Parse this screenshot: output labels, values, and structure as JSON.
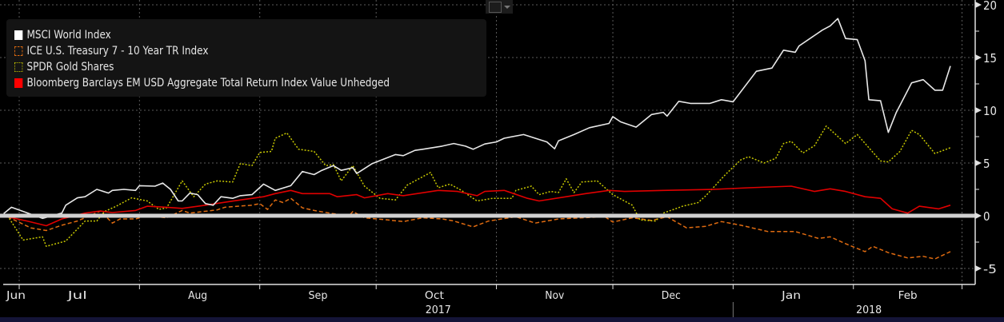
{
  "toolbar": {
    "chart_type_icon": "line-chart-icon",
    "dropdown_icon": "chevron-down-icon"
  },
  "chart_data": {
    "type": "line",
    "title": "",
    "xlabel": "",
    "ylabel": "",
    "x_unit": "days since 2017-07-01",
    "ylim": [
      -6,
      20
    ],
    "yticks": [
      20,
      15,
      10,
      5,
      0,
      -5
    ],
    "xlim": [
      -4,
      247
    ],
    "grid": true,
    "legend_position": "top-left",
    "month_ticks": [
      {
        "label": "Jun",
        "day": -15
      },
      {
        "label": "Jul",
        "day": 15
      },
      {
        "label": "Aug",
        "day": 46
      },
      {
        "label": "Sep",
        "day": 77
      },
      {
        "label": "Oct",
        "day": 107
      },
      {
        "label": "Nov",
        "day": 138
      },
      {
        "label": "Dec",
        "day": 168
      },
      {
        "label": "Jan",
        "day": 199
      },
      {
        "label": "Feb",
        "day": 229
      }
    ],
    "month_boundaries": [
      0,
      31,
      62,
      92,
      123,
      153,
      184,
      215,
      243
    ],
    "years": [
      {
        "label": "2017",
        "day": 108
      },
      {
        "label": "2018",
        "day": 219
      }
    ],
    "year_boundary": 184,
    "series": [
      {
        "name": "MSCI World Index",
        "color": "#e8e8e8",
        "style": "solid",
        "points": [
          [
            -4,
            0.2
          ],
          [
            -2,
            0.8
          ],
          [
            6,
            -0.25
          ],
          [
            11,
            0.25
          ],
          [
            12,
            1.0
          ],
          [
            15,
            1.7
          ],
          [
            17,
            1.8
          ],
          [
            20,
            2.5
          ],
          [
            23,
            2.15
          ],
          [
            24,
            2.4
          ],
          [
            27,
            2.5
          ],
          [
            30,
            2.4
          ],
          [
            31,
            2.85
          ],
          [
            35,
            2.8
          ],
          [
            37,
            3.1
          ],
          [
            39,
            2.5
          ],
          [
            41,
            1.4
          ],
          [
            42,
            1.4
          ],
          [
            44,
            2.15
          ],
          [
            46,
            2.0
          ],
          [
            48,
            1.15
          ],
          [
            50,
            1.0
          ],
          [
            52,
            1.8
          ],
          [
            55,
            1.65
          ],
          [
            57,
            1.9
          ],
          [
            60,
            2.0
          ],
          [
            63,
            3.0
          ],
          [
            66,
            2.4
          ],
          [
            70,
            2.85
          ],
          [
            73,
            4.2
          ],
          [
            76,
            3.9
          ],
          [
            78,
            4.3
          ],
          [
            81,
            4.75
          ],
          [
            83,
            4.3
          ],
          [
            86,
            4.55
          ],
          [
            87,
            4.0
          ],
          [
            91,
            4.95
          ],
          [
            97,
            5.8
          ],
          [
            99,
            5.7
          ],
          [
            102,
            6.2
          ],
          [
            104,
            6.3
          ],
          [
            109,
            6.6
          ],
          [
            112,
            6.85
          ],
          [
            115,
            6.6
          ],
          [
            117,
            6.3
          ],
          [
            120,
            6.8
          ],
          [
            123,
            7.0
          ],
          [
            125,
            7.35
          ],
          [
            130,
            7.7
          ],
          [
            133,
            7.35
          ],
          [
            136,
            7.0
          ],
          [
            138,
            6.35
          ],
          [
            139,
            7.1
          ],
          [
            143,
            7.7
          ],
          [
            147,
            8.35
          ],
          [
            152,
            8.75
          ],
          [
            153,
            9.4
          ],
          [
            155,
            8.9
          ],
          [
            159,
            8.4
          ],
          [
            163,
            9.6
          ],
          [
            166,
            9.8
          ],
          [
            167,
            9.45
          ],
          [
            170,
            10.85
          ],
          [
            173,
            10.65
          ],
          [
            178,
            10.65
          ],
          [
            181,
            11.0
          ],
          [
            184,
            10.8
          ],
          [
            190,
            13.7
          ],
          [
            194,
            14.0
          ],
          [
            197,
            15.7
          ],
          [
            200,
            15.5
          ],
          [
            201,
            16.1
          ],
          [
            207,
            17.6
          ],
          [
            209,
            18.0
          ],
          [
            211,
            18.7
          ],
          [
            213,
            16.8
          ],
          [
            216,
            16.7
          ],
          [
            218,
            14.7
          ],
          [
            219,
            11.0
          ],
          [
            222,
            10.9
          ],
          [
            224,
            7.9
          ],
          [
            226,
            9.75
          ],
          [
            230,
            12.6
          ],
          [
            233,
            12.9
          ],
          [
            236,
            11.9
          ],
          [
            238,
            11.9
          ],
          [
            240,
            14.2
          ]
        ]
      },
      {
        "name": "ICE U.S. Treasury 7 - 10 Year TR Index",
        "color": "#e06b10",
        "style": "dashed",
        "points": [
          [
            -3,
            -0.1
          ],
          [
            3,
            -1.15
          ],
          [
            7,
            -1.4
          ],
          [
            11,
            -0.9
          ],
          [
            15,
            -0.5
          ],
          [
            21,
            0.45
          ],
          [
            24,
            -0.7
          ],
          [
            26,
            -0.3
          ],
          [
            30,
            -0.3
          ],
          [
            33,
            0
          ],
          [
            38,
            -0.2
          ],
          [
            42,
            0.5
          ],
          [
            44,
            0.25
          ],
          [
            51,
            0.55
          ],
          [
            53,
            0.8
          ],
          [
            60,
            1.0
          ],
          [
            62,
            1.15
          ],
          [
            64,
            0.6
          ],
          [
            66,
            1.5
          ],
          [
            68,
            1.25
          ],
          [
            70,
            1.65
          ],
          [
            73,
            0.75
          ],
          [
            76,
            0.5
          ],
          [
            80,
            0.25
          ],
          [
            85,
            0
          ],
          [
            86,
            0.4
          ],
          [
            89,
            -0.2
          ],
          [
            95,
            -0.4
          ],
          [
            99,
            -0.55
          ],
          [
            104,
            -0.2
          ],
          [
            109,
            -0.3
          ],
          [
            112,
            -0.5
          ],
          [
            117,
            -1.05
          ],
          [
            121,
            -0.5
          ],
          [
            128,
            -0.1
          ],
          [
            133,
            -0.7
          ],
          [
            139,
            -0.3
          ],
          [
            145,
            -0.2
          ],
          [
            151,
            -0.1
          ],
          [
            153,
            -0.6
          ],
          [
            158,
            -0.2
          ],
          [
            163,
            -0.45
          ],
          [
            167,
            -0.1
          ],
          [
            172,
            -1.15
          ],
          [
            177,
            -1.0
          ],
          [
            181,
            -0.55
          ],
          [
            186,
            -0.9
          ],
          [
            193,
            -1.5
          ],
          [
            200,
            -1.5
          ],
          [
            206,
            -2.15
          ],
          [
            209,
            -2.0
          ],
          [
            213,
            -2.65
          ],
          [
            218,
            -3.4
          ],
          [
            220,
            -2.9
          ],
          [
            224,
            -3.5
          ],
          [
            229,
            -4.0
          ],
          [
            233,
            -3.85
          ],
          [
            236,
            -4.1
          ],
          [
            240,
            -3.4
          ]
        ]
      },
      {
        "name": "SPDR Gold Shares",
        "color": "#c8c800",
        "style": "dotted",
        "points": [
          [
            -3,
            0
          ],
          [
            1,
            -2.3
          ],
          [
            6,
            -2.0
          ],
          [
            7,
            -2.9
          ],
          [
            12,
            -2.4
          ],
          [
            17,
            -0.5
          ],
          [
            20,
            -0.5
          ],
          [
            22,
            0.4
          ],
          [
            25,
            0.9
          ],
          [
            29,
            1.7
          ],
          [
            33,
            1.4
          ],
          [
            36,
            0.6
          ],
          [
            38,
            0.75
          ],
          [
            42,
            3.3
          ],
          [
            45,
            1.8
          ],
          [
            48,
            3.0
          ],
          [
            51,
            3.3
          ],
          [
            55,
            3.2
          ],
          [
            57,
            4.95
          ],
          [
            60,
            4.75
          ],
          [
            62,
            6.0
          ],
          [
            65,
            6.1
          ],
          [
            66,
            7.35
          ],
          [
            69,
            7.85
          ],
          [
            72,
            6.3
          ],
          [
            76,
            6.1
          ],
          [
            79,
            4.75
          ],
          [
            81,
            4.85
          ],
          [
            83,
            3.3
          ],
          [
            86,
            4.75
          ],
          [
            89,
            2.8
          ],
          [
            93,
            1.65
          ],
          [
            97,
            1.5
          ],
          [
            100,
            2.9
          ],
          [
            106,
            4.1
          ],
          [
            108,
            2.65
          ],
          [
            111,
            3.0
          ],
          [
            114,
            2.4
          ],
          [
            118,
            1.4
          ],
          [
            122,
            1.65
          ],
          [
            127,
            1.65
          ],
          [
            128,
            2.4
          ],
          [
            132,
            2.8
          ],
          [
            134,
            2.0
          ],
          [
            137,
            2.3
          ],
          [
            139,
            2.2
          ],
          [
            141,
            3.5
          ],
          [
            143,
            2.2
          ],
          [
            145,
            3.2
          ],
          [
            149,
            3.3
          ],
          [
            153,
            2.0
          ],
          [
            158,
            1.0
          ],
          [
            160,
            -0.4
          ],
          [
            164,
            -0.5
          ],
          [
            166,
            0.25
          ],
          [
            171,
            0.9
          ],
          [
            175,
            1.25
          ],
          [
            177,
            1.9
          ],
          [
            182,
            3.9
          ],
          [
            186,
            5.3
          ],
          [
            188,
            5.6
          ],
          [
            192,
            5.0
          ],
          [
            195,
            5.45
          ],
          [
            197,
            6.85
          ],
          [
            199,
            7.05
          ],
          [
            202,
            5.95
          ],
          [
            205,
            6.65
          ],
          [
            208,
            8.5
          ],
          [
            210,
            7.85
          ],
          [
            213,
            6.85
          ],
          [
            216,
            7.7
          ],
          [
            219,
            6.45
          ],
          [
            222,
            5.2
          ],
          [
            224,
            5.1
          ],
          [
            227,
            6.1
          ],
          [
            230,
            8.1
          ],
          [
            232,
            7.7
          ],
          [
            236,
            5.9
          ],
          [
            240,
            6.45
          ]
        ]
      },
      {
        "name": "Bloomberg Barclays EM USD Aggregate Total Return Index Value Unhedged",
        "color": "#e00000",
        "style": "solid",
        "points": [
          [
            -3,
            -0.1
          ],
          [
            2,
            -0.5
          ],
          [
            7,
            -0.95
          ],
          [
            11,
            -0.3
          ],
          [
            17,
            0.25
          ],
          [
            21,
            0.45
          ],
          [
            24,
            0.3
          ],
          [
            30,
            0.5
          ],
          [
            33,
            0.9
          ],
          [
            38,
            0.8
          ],
          [
            42,
            0.7
          ],
          [
            48,
            1.0
          ],
          [
            56,
            1.45
          ],
          [
            63,
            1.8
          ],
          [
            66,
            2.1
          ],
          [
            70,
            2.4
          ],
          [
            73,
            2.1
          ],
          [
            80,
            2.1
          ],
          [
            82,
            1.8
          ],
          [
            87,
            2.0
          ],
          [
            89,
            1.7
          ],
          [
            95,
            2.1
          ],
          [
            99,
            1.9
          ],
          [
            108,
            2.4
          ],
          [
            113,
            2.3
          ],
          [
            118,
            1.9
          ],
          [
            120,
            2.3
          ],
          [
            125,
            2.4
          ],
          [
            131,
            1.65
          ],
          [
            134,
            1.4
          ],
          [
            141,
            1.8
          ],
          [
            146,
            2.1
          ],
          [
            152,
            2.4
          ],
          [
            156,
            2.3
          ],
          [
            166,
            2.4
          ],
          [
            179,
            2.5
          ],
          [
            188,
            2.65
          ],
          [
            199,
            2.8
          ],
          [
            205,
            2.3
          ],
          [
            209,
            2.55
          ],
          [
            213,
            2.3
          ],
          [
            218,
            1.8
          ],
          [
            222,
            1.65
          ],
          [
            225,
            0.65
          ],
          [
            229,
            0.25
          ],
          [
            232,
            0.9
          ],
          [
            237,
            0.65
          ],
          [
            240,
            1.0
          ]
        ]
      }
    ]
  }
}
